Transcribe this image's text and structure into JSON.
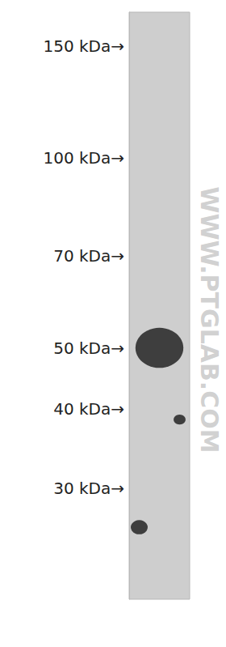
{
  "chart_data": {
    "type": "scatter",
    "categories": [
      null,
      null,
      null
    ],
    "values": [
      26,
      50,
      38.5
    ],
    "sizes": [
      1,
      8,
      0.5
    ],
    "color": "#1a1a1a",
    "marker": "ellipse",
    "log": "y",
    "ylim": [
      20,
      170
    ],
    "yticks": [
      {
        "value": 150,
        "label": "150 kDa→"
      },
      {
        "value": 100,
        "label": "100 kDa→"
      },
      {
        "value": 70,
        "label": "70 kDa→"
      },
      {
        "value": 50,
        "label": "50 kDa→"
      },
      {
        "value": 40,
        "label": "40 kDa→"
      },
      {
        "value": 30,
        "label": "30 kDa→"
      }
    ],
    "grid": false,
    "tick_labels": "y",
    "watermark": "WWW.PTGLAB.COM"
  }
}
